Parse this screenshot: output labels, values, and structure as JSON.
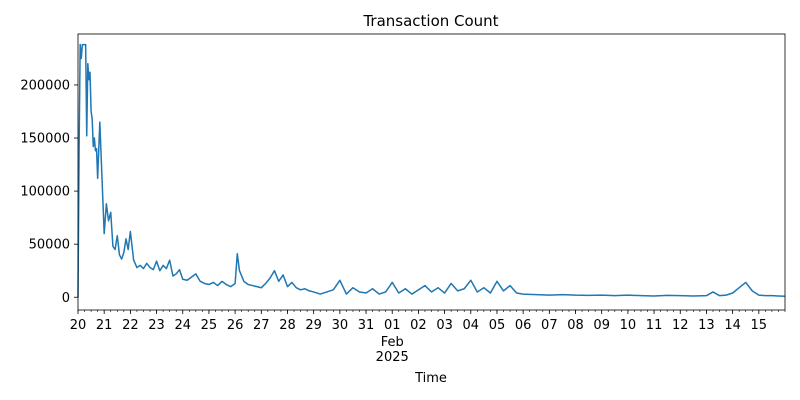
{
  "chart_data": {
    "type": "line",
    "title": "Transaction Count",
    "xlabel": "Time",
    "ylabel": "",
    "ylim": [
      -12000,
      248000
    ],
    "xlim": [
      "2025-01-20T00:00",
      "2025-02-16T00:00"
    ],
    "grid": false,
    "legend": "none",
    "y_ticks": [
      0,
      50000,
      100000,
      150000,
      200000
    ],
    "x_ticks": [
      {
        "date": "2025-01-20",
        "label": "20"
      },
      {
        "date": "2025-01-21",
        "label": "21"
      },
      {
        "date": "2025-01-22",
        "label": "22"
      },
      {
        "date": "2025-01-23",
        "label": "23"
      },
      {
        "date": "2025-01-24",
        "label": "24"
      },
      {
        "date": "2025-01-25",
        "label": "25"
      },
      {
        "date": "2025-01-26",
        "label": "26"
      },
      {
        "date": "2025-01-27",
        "label": "27"
      },
      {
        "date": "2025-01-28",
        "label": "28"
      },
      {
        "date": "2025-01-29",
        "label": "29"
      },
      {
        "date": "2025-01-30",
        "label": "30"
      },
      {
        "date": "2025-01-31",
        "label": "31"
      },
      {
        "date": "2025-02-01",
        "label": "01",
        "sublabel1": "Feb",
        "sublabel2": "2025"
      },
      {
        "date": "2025-02-02",
        "label": "02"
      },
      {
        "date": "2025-02-03",
        "label": "03"
      },
      {
        "date": "2025-02-04",
        "label": "04"
      },
      {
        "date": "2025-02-05",
        "label": "05"
      },
      {
        "date": "2025-02-06",
        "label": "06"
      },
      {
        "date": "2025-02-07",
        "label": "07"
      },
      {
        "date": "2025-02-08",
        "label": "08"
      },
      {
        "date": "2025-02-09",
        "label": "09"
      },
      {
        "date": "2025-02-10",
        "label": "10"
      },
      {
        "date": "2025-02-11",
        "label": "11"
      },
      {
        "date": "2025-02-12",
        "label": "12"
      },
      {
        "date": "2025-02-13",
        "label": "13"
      },
      {
        "date": "2025-02-14",
        "label": "14"
      },
      {
        "date": "2025-02-15",
        "label": "15"
      }
    ],
    "series": [
      {
        "color": "#1f77b4",
        "x": [
          "2025-01-20T00:00",
          "2025-01-20T01:00",
          "2025-01-20T02:00",
          "2025-01-20T03:00",
          "2025-01-20T04:00",
          "2025-01-20T05:00",
          "2025-01-20T06:00",
          "2025-01-20T07:00",
          "2025-01-20T08:00",
          "2025-01-20T09:00",
          "2025-01-20T10:00",
          "2025-01-20T11:00",
          "2025-01-20T12:00",
          "2025-01-20T13:00",
          "2025-01-20T14:00",
          "2025-01-20T15:00",
          "2025-01-20T16:00",
          "2025-01-20T17:00",
          "2025-01-20T18:00",
          "2025-01-20T20:00",
          "2025-01-20T22:00",
          "2025-01-21T00:00",
          "2025-01-21T02:00",
          "2025-01-21T04:00",
          "2025-01-21T06:00",
          "2025-01-21T08:00",
          "2025-01-21T10:00",
          "2025-01-21T12:00",
          "2025-01-21T14:00",
          "2025-01-21T16:00",
          "2025-01-21T18:00",
          "2025-01-21T20:00",
          "2025-01-21T22:00",
          "2025-01-22T00:00",
          "2025-01-22T03:00",
          "2025-01-22T06:00",
          "2025-01-22T09:00",
          "2025-01-22T12:00",
          "2025-01-22T15:00",
          "2025-01-22T18:00",
          "2025-01-22T21:00",
          "2025-01-23T00:00",
          "2025-01-23T03:00",
          "2025-01-23T06:00",
          "2025-01-23T09:00",
          "2025-01-23T12:00",
          "2025-01-23T15:00",
          "2025-01-23T18:00",
          "2025-01-23T21:00",
          "2025-01-24T00:00",
          "2025-01-24T04:00",
          "2025-01-24T08:00",
          "2025-01-24T12:00",
          "2025-01-24T16:00",
          "2025-01-24T20:00",
          "2025-01-25T00:00",
          "2025-01-25T04:00",
          "2025-01-25T08:00",
          "2025-01-25T12:00",
          "2025-01-25T16:00",
          "2025-01-25T20:00",
          "2025-01-26T00:00",
          "2025-01-26T02:00",
          "2025-01-26T04:00",
          "2025-01-26T08:00",
          "2025-01-26T12:00",
          "2025-01-26T16:00",
          "2025-01-26T20:00",
          "2025-01-27T00:00",
          "2025-01-27T04:00",
          "2025-01-27T08:00",
          "2025-01-27T12:00",
          "2025-01-27T16:00",
          "2025-01-27T20:00",
          "2025-01-28T00:00",
          "2025-01-28T04:00",
          "2025-01-28T08:00",
          "2025-01-28T12:00",
          "2025-01-28T16:00",
          "2025-01-28T20:00",
          "2025-01-29T00:00",
          "2025-01-29T06:00",
          "2025-01-29T12:00",
          "2025-01-29T18:00",
          "2025-01-30T00:00",
          "2025-01-30T06:00",
          "2025-01-30T12:00",
          "2025-01-30T18:00",
          "2025-01-31T00:00",
          "2025-01-31T06:00",
          "2025-01-31T12:00",
          "2025-01-31T18:00",
          "2025-02-01T00:00",
          "2025-02-01T06:00",
          "2025-02-01T12:00",
          "2025-02-01T18:00",
          "2025-02-02T00:00",
          "2025-02-02T06:00",
          "2025-02-02T12:00",
          "2025-02-02T18:00",
          "2025-02-03T00:00",
          "2025-02-03T06:00",
          "2025-02-03T12:00",
          "2025-02-03T18:00",
          "2025-02-04T00:00",
          "2025-02-04T06:00",
          "2025-02-04T12:00",
          "2025-02-04T18:00",
          "2025-02-05T00:00",
          "2025-02-05T06:00",
          "2025-02-05T12:00",
          "2025-02-05T18:00",
          "2025-02-06T00:00",
          "2025-02-06T12:00",
          "2025-02-07T00:00",
          "2025-02-07T12:00",
          "2025-02-08T00:00",
          "2025-02-08T12:00",
          "2025-02-09T00:00",
          "2025-02-09T12:00",
          "2025-02-10T00:00",
          "2025-02-10T12:00",
          "2025-02-11T00:00",
          "2025-02-11T12:00",
          "2025-02-12T00:00",
          "2025-02-12T12:00",
          "2025-02-13T00:00",
          "2025-02-13T06:00",
          "2025-02-13T12:00",
          "2025-02-13T18:00",
          "2025-02-14T00:00",
          "2025-02-14T06:00",
          "2025-02-14T12:00",
          "2025-02-14T18:00",
          "2025-02-15T00:00",
          "2025-02-15T06:00",
          "2025-02-15T12:00",
          "2025-02-15T18:00",
          "2025-02-16T00:00"
        ],
        "y": [
          0,
          140000,
          238000,
          225000,
          238000,
          238000,
          238000,
          238000,
          152000,
          220000,
          205000,
          212000,
          175000,
          168000,
          142000,
          150000,
          138000,
          140000,
          112000,
          165000,
          112000,
          60000,
          88000,
          72000,
          80000,
          48000,
          45000,
          58000,
          40000,
          36000,
          42000,
          55000,
          45000,
          62000,
          35000,
          28000,
          30000,
          27000,
          32000,
          28000,
          26000,
          34000,
          25000,
          30000,
          27000,
          35000,
          20000,
          22000,
          26000,
          17000,
          16000,
          19000,
          22000,
          15000,
          13000,
          12000,
          14000,
          11000,
          15000,
          12000,
          10000,
          13000,
          41000,
          25000,
          15000,
          12000,
          11000,
          10000,
          9000,
          13000,
          18000,
          25000,
          15000,
          21000,
          10000,
          14000,
          9000,
          7000,
          8000,
          6000,
          5000,
          3000,
          5000,
          7000,
          16000,
          3000,
          9000,
          5000,
          4000,
          8000,
          3000,
          5000,
          14000,
          4000,
          8000,
          3000,
          7000,
          11000,
          5000,
          9000,
          4000,
          13000,
          6000,
          8000,
          16000,
          5000,
          9000,
          4000,
          15000,
          6000,
          11000,
          4000,
          3000,
          2500,
          2000,
          2500,
          2000,
          1800,
          2000,
          1500,
          2000,
          1500,
          1200,
          1800,
          1500,
          1200,
          1500,
          5000,
          1500,
          2000,
          4000,
          9000,
          14000,
          6000,
          2000,
          1500,
          1500,
          1200,
          1000
        ]
      }
    ]
  }
}
